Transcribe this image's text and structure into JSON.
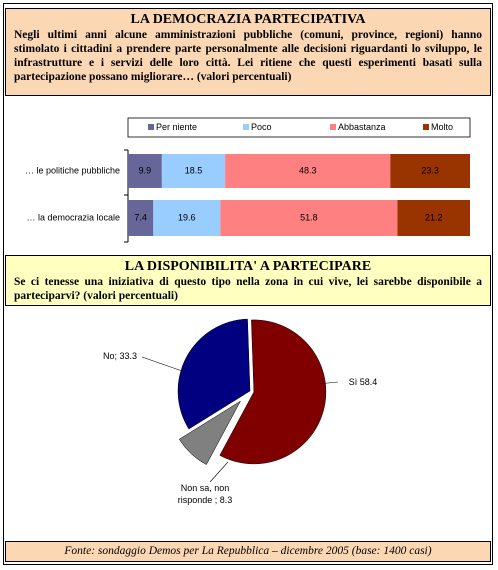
{
  "header1": {
    "title": "LA DEMOCRAZIA PARTECIPATIVA",
    "text": "Negli ultimi anni alcune amministrazioni pubbliche (comuni, province, regioni) hanno stimolato i cittadini a prendere parte personalmente alle decisioni riguardanti lo sviluppo, le infrastrutture e i servizi delle loro città. Lei ritiene che questi esperimenti basati sulla partecipazione possano migliorare… (valori percentuali)"
  },
  "header2": {
    "title": "LA DISPONIBILITA' A PARTECIPARE",
    "text": "Se ci tenesse una iniziativa di questo tipo nella zona in cui vive, lei sarebbe disponibile a parteciparvi? (valori percentuali)"
  },
  "footer": "Fonte: sondaggio Demos per La Repubblica – dicembre 2005 (base: 1400 casi)",
  "chart_data": [
    {
      "type": "stacked-bar",
      "categories": [
        "… le politiche pubbliche",
        "… la democrazia locale"
      ],
      "xlim": [
        0,
        100
      ],
      "series": [
        {
          "name": "Per niente",
          "color": "#666699",
          "values": [
            9.9,
            7.4
          ]
        },
        {
          "name": "Poco",
          "color": "#99ccff",
          "values": [
            18.5,
            19.6
          ]
        },
        {
          "name": "Abbastanza",
          "color": "#ff8080",
          "values": [
            48.3,
            51.8
          ]
        },
        {
          "name": "Molto",
          "color": "#993300",
          "values": [
            23.3,
            21.2
          ]
        }
      ]
    },
    {
      "type": "pie",
      "values": [
        58.4,
        8.3,
        33.3
      ],
      "value_labels": [
        "Sì 58.4",
        "Non sa, non risponde ; 8.3",
        "No; 33.3"
      ],
      "colors": [
        "#800000",
        "#808080",
        "#000080"
      ]
    }
  ]
}
